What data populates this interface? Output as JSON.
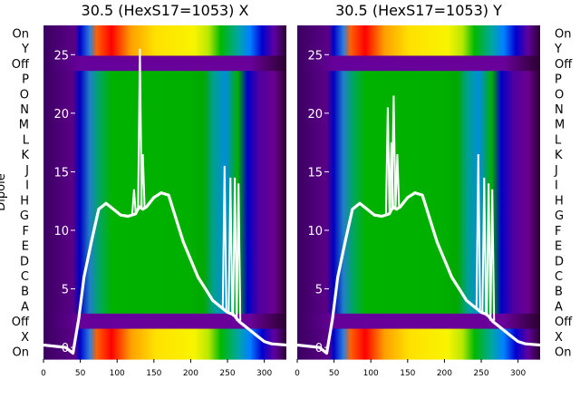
{
  "chart_data": [
    {
      "type": "heatmap",
      "title": "30.5 (HexS17=1053) X",
      "ylabel": "Dipole",
      "xlim": [
        0,
        330
      ],
      "xticks": [
        0,
        50,
        100,
        150,
        200,
        250,
        300
      ],
      "xtick_labels": [
        "0",
        "50",
        "100",
        "150",
        "200",
        "250",
        "300"
      ],
      "row_labels": [
        "On",
        "Y",
        "Off",
        "P",
        "O",
        "N",
        "M",
        "L",
        "K",
        "J",
        "I",
        "H",
        "G",
        "F",
        "E",
        "D",
        "C",
        "B",
        "A",
        "Off",
        "X",
        "On"
      ],
      "overlay_axis": {
        "ticks": [
          0,
          5,
          10,
          15,
          20,
          25
        ],
        "tick_labels": [
          "0",
          "5",
          "10",
          "15",
          "20",
          "25"
        ],
        "ylim": [
          -1,
          27.5
        ]
      },
      "overlay_line": {
        "color": "#ffffff",
        "x": [
          0,
          30,
          40,
          48,
          55,
          65,
          75,
          85,
          95,
          105,
          115,
          125,
          130,
          135,
          140,
          150,
          160,
          170,
          180,
          190,
          200,
          210,
          220,
          230,
          240,
          250,
          258,
          262,
          266,
          270,
          280,
          290,
          300,
          310,
          330
        ],
        "y": [
          0.2,
          0,
          -0.5,
          2.5,
          6,
          9,
          11.8,
          12.3,
          11.8,
          11.3,
          11.2,
          11.4,
          12,
          11.8,
          12,
          12.8,
          13.2,
          13.0,
          11,
          9,
          7.5,
          6,
          5,
          4,
          3.5,
          3,
          2.8,
          2.5,
          2.2,
          2,
          1.5,
          1,
          0.5,
          0.3,
          0.2
        ],
        "spikes": [
          {
            "x": 123,
            "y": 13.5
          },
          {
            "x": 131,
            "y": 25.5
          },
          {
            "x": 135,
            "y": 16.5
          },
          {
            "x": 246,
            "y": 15.5
          },
          {
            "x": 254,
            "y": 14.5
          },
          {
            "x": 260,
            "y": 14.5
          },
          {
            "x": 265,
            "y": 14
          }
        ]
      }
    },
    {
      "type": "heatmap",
      "title": "30.5 (HexS17=1053) Y",
      "xlim": [
        0,
        330
      ],
      "xticks": [
        0,
        50,
        100,
        150,
        200,
        250,
        300
      ],
      "xtick_labels": [
        "0",
        "50",
        "100",
        "150",
        "200",
        "250",
        "300"
      ],
      "row_labels": [
        "On",
        "Y",
        "Off",
        "P",
        "O",
        "N",
        "M",
        "L",
        "K",
        "J",
        "I",
        "H",
        "G",
        "F",
        "E",
        "D",
        "C",
        "B",
        "A",
        "Off",
        "X",
        "On"
      ],
      "overlay_axis": {
        "ticks": [
          0,
          5,
          10,
          15,
          20,
          25
        ],
        "tick_labels": [
          "0",
          "5",
          "10",
          "15",
          "20",
          "25"
        ],
        "ylim": [
          -1,
          27.5
        ]
      },
      "overlay_line": {
        "color": "#ffffff",
        "x": [
          0,
          30,
          40,
          48,
          55,
          65,
          75,
          85,
          95,
          105,
          115,
          125,
          130,
          135,
          140,
          150,
          160,
          170,
          180,
          190,
          200,
          210,
          220,
          230,
          240,
          250,
          258,
          262,
          266,
          270,
          280,
          290,
          300,
          310,
          330
        ],
        "y": [
          0.2,
          0,
          -0.5,
          2.5,
          6,
          9,
          11.8,
          12.3,
          11.8,
          11.3,
          11.2,
          11.4,
          12,
          11.8,
          12,
          12.8,
          13.2,
          13.0,
          11,
          9,
          7.5,
          6,
          5,
          4,
          3.5,
          3,
          2.8,
          2.5,
          2.2,
          2,
          1.5,
          1,
          0.5,
          0.3,
          0.2
        ],
        "spikes": [
          {
            "x": 123,
            "y": 20.5
          },
          {
            "x": 128,
            "y": 17.5
          },
          {
            "x": 131,
            "y": 21.5
          },
          {
            "x": 136,
            "y": 16.5
          },
          {
            "x": 246,
            "y": 16.5
          },
          {
            "x": 254,
            "y": 14.5
          },
          {
            "x": 260,
            "y": 14
          },
          {
            "x": 265,
            "y": 13.5
          }
        ]
      }
    }
  ]
}
